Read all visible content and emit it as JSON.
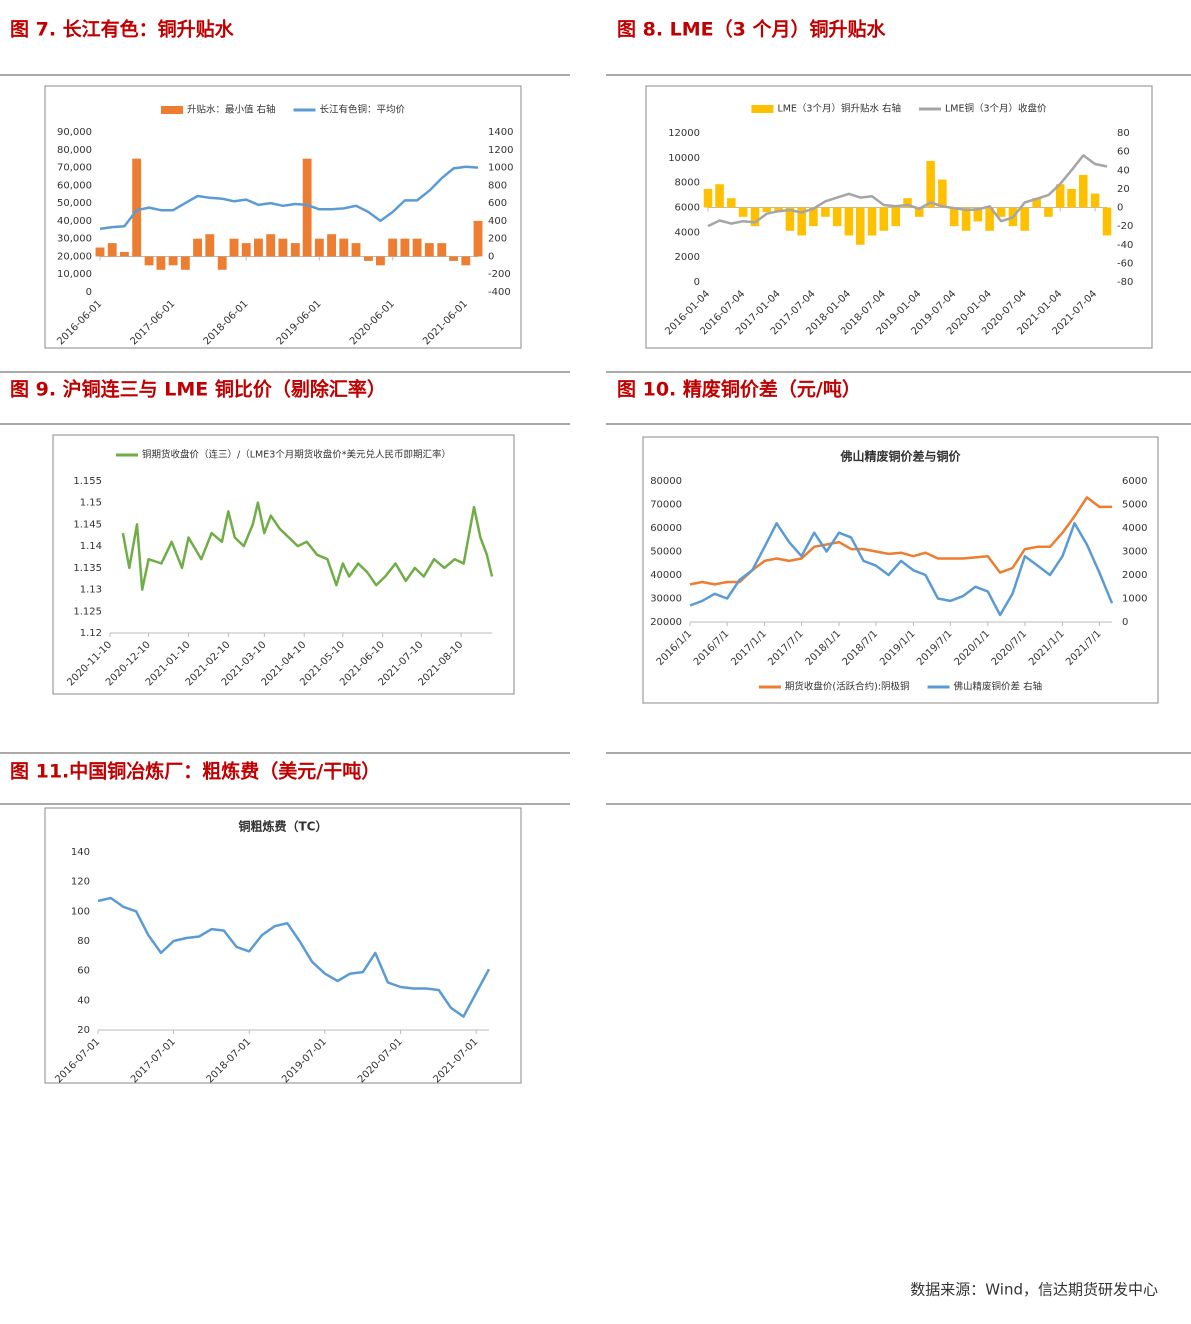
{
  "chart_data": [
    {
      "type": "combo",
      "heading": "图 7. 长江有色：铜升贴水",
      "x": [
        "2016-06-01",
        "2016-08-01",
        "2016-10-01",
        "2016-12-01",
        "2017-02-01",
        "2017-04-01",
        "2017-06-01",
        "2017-08-01",
        "2017-10-01",
        "2017-12-01",
        "2018-02-01",
        "2018-04-01",
        "2018-06-01",
        "2018-08-01",
        "2018-10-01",
        "2018-12-01",
        "2019-02-01",
        "2019-04-01",
        "2019-06-01",
        "2019-08-01",
        "2019-10-01",
        "2019-12-01",
        "2020-02-01",
        "2020-04-01",
        "2020-06-01",
        "2020-08-01",
        "2020-10-01",
        "2020-12-01",
        "2021-02-01",
        "2021-04-01",
        "2021-06-01",
        "2021-08-01"
      ],
      "xticks": [
        "2016-06-01",
        "2017-06-01",
        "2018-06-01",
        "2019-06-01",
        "2020-06-01",
        "2021-06-01"
      ],
      "series": [
        {
          "name": "升贴水：最小值 右轴",
          "type": "bar",
          "axis": "y2",
          "color": "#ed7d31",
          "values": [
            100,
            150,
            50,
            1100,
            -100,
            -150,
            -100,
            -150,
            200,
            250,
            -150,
            200,
            150,
            200,
            250,
            200,
            150,
            1100,
            200,
            250,
            200,
            150,
            -50,
            -100,
            200,
            200,
            200,
            150,
            150,
            -50,
            -100,
            400
          ]
        },
        {
          "name": "长江有色铜：平均价",
          "type": "line",
          "color": "#5b9bd5",
          "values": [
            35500,
            36500,
            37000,
            46000,
            47500,
            46000,
            46000,
            50000,
            54000,
            53000,
            52500,
            51000,
            52000,
            49000,
            50000,
            48500,
            49500,
            49000,
            46500,
            46500,
            47000,
            48500,
            45000,
            40000,
            45000,
            51500,
            51500,
            57000,
            64000,
            69500,
            70500,
            70000
          ]
        }
      ],
      "ylim": [
        0,
        90000
      ],
      "yticks": [
        0,
        {
          "value": 10000,
          "label": "10,000"
        },
        {
          "value": 20000,
          "label": "20,000"
        },
        {
          "value": 30000,
          "label": "30,000"
        },
        {
          "value": 40000,
          "label": "40,000"
        },
        {
          "value": 50000,
          "label": "50,000"
        },
        {
          "value": 60000,
          "label": "60,000"
        },
        {
          "value": 70000,
          "label": "70,000"
        },
        {
          "value": 80000,
          "label": "80,000"
        },
        {
          "value": 90000,
          "label": "90,000"
        }
      ],
      "y2lim": [
        -400,
        1400
      ],
      "y2ticks": [
        -400,
        -200,
        0,
        200,
        400,
        600,
        800,
        1000,
        1200,
        1400
      ],
      "legend": "top"
    },
    {
      "type": "combo",
      "heading": "图 8. LME（3 个月）铜升贴水",
      "x": [
        "2016-01-04",
        "2016-03-04",
        "2016-05-04",
        "2016-07-04",
        "2016-09-04",
        "2016-11-04",
        "2017-01-04",
        "2017-03-04",
        "2017-05-04",
        "2017-07-04",
        "2017-09-04",
        "2017-11-04",
        "2018-01-04",
        "2018-03-04",
        "2018-05-04",
        "2018-07-04",
        "2018-09-04",
        "2018-11-04",
        "2019-01-04",
        "2019-03-04",
        "2019-05-04",
        "2019-07-04",
        "2019-09-04",
        "2019-11-04",
        "2020-01-04",
        "2020-03-04",
        "2020-05-04",
        "2020-07-04",
        "2020-09-04",
        "2020-11-04",
        "2021-01-04",
        "2021-03-04",
        "2021-05-04",
        "2021-07-04",
        "2021-09-04"
      ],
      "xticks": [
        "2016-01-04",
        "2016-07-04",
        "2017-01-04",
        "2017-07-04",
        "2018-01-04",
        "2018-07-04",
        "2019-01-04",
        "2019-07-04",
        "2020-01-04",
        "2020-07-04",
        "2021-01-04",
        "2021-07-04"
      ],
      "series": [
        {
          "name": "LME（3个月）铜升贴水 右轴",
          "type": "bar",
          "axis": "y2",
          "color": "#ffc000",
          "values": [
            20,
            25,
            10,
            -10,
            -20,
            -5,
            -5,
            -25,
            -30,
            -20,
            -10,
            -20,
            -30,
            -40,
            -30,
            -25,
            -20,
            10,
            -10,
            50,
            30,
            -20,
            -25,
            -15,
            -25,
            -10,
            -20,
            -25,
            10,
            -10,
            25,
            20,
            35,
            15,
            -30
          ]
        },
        {
          "name": "LME铜（3个月）收盘价",
          "type": "line",
          "color": "#a5a5a5",
          "values": [
            4500,
            4950,
            4700,
            4900,
            4800,
            5500,
            5700,
            5800,
            5600,
            5900,
            6500,
            6800,
            7100,
            6800,
            6900,
            6200,
            6100,
            6200,
            5900,
            6400,
            6100,
            5950,
            5800,
            5850,
            6100,
            4900,
            5200,
            6400,
            6700,
            7000,
            7900,
            9000,
            10200,
            9500,
            9300
          ]
        }
      ],
      "ylim": [
        0,
        12000
      ],
      "yticks": [
        0,
        2000,
        4000,
        6000,
        8000,
        10000,
        12000
      ],
      "y2lim": [
        -80,
        80
      ],
      "y2ticks": [
        -80,
        -60,
        -40,
        -20,
        0,
        20,
        40,
        60,
        80
      ],
      "legend": "top"
    },
    {
      "type": "line",
      "heading": "图 9. 沪铜连三与 LME 铜比价（剔除汇率）",
      "x": [
        "2020-11-20",
        "2020-11-25",
        "2020-12-01",
        "2020-12-05",
        "2020-12-10",
        "2020-12-20",
        "2020-12-28",
        "2021-01-05",
        "2021-01-10",
        "2021-01-20",
        "2021-01-28",
        "2021-02-05",
        "2021-02-10",
        "2021-02-15",
        "2021-02-22",
        "2021-03-01",
        "2021-03-05",
        "2021-03-10",
        "2021-03-15",
        "2021-03-22",
        "2021-03-29",
        "2021-04-05",
        "2021-04-12",
        "2021-04-20",
        "2021-04-28",
        "2021-05-05",
        "2021-05-10",
        "2021-05-15",
        "2021-05-22",
        "2021-05-29",
        "2021-06-05",
        "2021-06-12",
        "2021-06-20",
        "2021-06-28",
        "2021-07-05",
        "2021-07-12",
        "2021-07-20",
        "2021-07-28",
        "2021-08-05",
        "2021-08-12",
        "2021-08-20",
        "2021-08-25",
        "2021-08-30",
        "2021-09-03"
      ],
      "xticks": [
        "2020-11-10",
        "2020-12-10",
        "2021-01-10",
        "2021-02-10",
        "2021-03-10",
        "2021-04-10",
        "2021-05-10",
        "2021-06-10",
        "2021-07-10",
        "2021-08-10"
      ],
      "series": [
        {
          "name": "铜期货收盘价（连三）/（LME3个月期货收盘价*美元兑人民币即期汇率）",
          "type": "line",
          "color": "#70ad47",
          "values": [
            1.143,
            1.135,
            1.145,
            1.13,
            1.137,
            1.136,
            1.141,
            1.135,
            1.142,
            1.137,
            1.143,
            1.141,
            1.148,
            1.142,
            1.14,
            1.145,
            1.15,
            1.143,
            1.147,
            1.144,
            1.142,
            1.14,
            1.141,
            1.138,
            1.137,
            1.131,
            1.136,
            1.133,
            1.136,
            1.134,
            1.131,
            1.133,
            1.136,
            1.132,
            1.135,
            1.133,
            1.137,
            1.135,
            1.137,
            1.136,
            1.149,
            1.142,
            1.138,
            1.133
          ]
        }
      ],
      "ylim": [
        1.12,
        1.155
      ],
      "yticks": [
        1.12,
        1.125,
        1.13,
        1.135,
        1.14,
        1.145,
        1.15,
        1.155
      ],
      "legend": "top"
    },
    {
      "type": "line",
      "heading": "图 10. 精废铜价差（元/吨）",
      "title": "佛山精废铜价差与铜价",
      "x": [
        "2016/1/1",
        "2016/3/1",
        "2016/5/1",
        "2016/7/1",
        "2016/9/1",
        "2016/11/1",
        "2017/1/1",
        "2017/3/1",
        "2017/5/1",
        "2017/7/1",
        "2017/9/1",
        "2017/11/1",
        "2018/1/1",
        "2018/3/1",
        "2018/5/1",
        "2018/7/1",
        "2018/9/1",
        "2018/11/1",
        "2019/1/1",
        "2019/3/1",
        "2019/5/1",
        "2019/7/1",
        "2019/9/1",
        "2019/11/1",
        "2020/1/1",
        "2020/3/1",
        "2020/5/1",
        "2020/7/1",
        "2020/9/1",
        "2020/11/1",
        "2021/1/1",
        "2021/3/1",
        "2021/5/1",
        "2021/7/1",
        "2021/9/1"
      ],
      "xticks": [
        "2016/1/1",
        "2016/7/1",
        "2017/1/1",
        "2017/7/1",
        "2018/1/1",
        "2018/7/1",
        "2019/1/1",
        "2019/7/1",
        "2020/1/1",
        "2020/7/1",
        "2021/1/1",
        "2021/7/1"
      ],
      "series": [
        {
          "name": "期货收盘价(活跃合约):阴极铜",
          "type": "line",
          "color": "#ed7d31",
          "values": [
            36000,
            37000,
            36000,
            37000,
            37000,
            42000,
            46000,
            47000,
            46000,
            47000,
            52000,
            53000,
            54000,
            51000,
            51000,
            50000,
            49000,
            49500,
            48000,
            49500,
            47000,
            47000,
            47000,
            47500,
            48000,
            41000,
            43000,
            51000,
            52000,
            52000,
            58000,
            65000,
            73000,
            69000,
            69000
          ]
        },
        {
          "name": "佛山精废铜价差 右轴",
          "type": "line",
          "axis": "y2",
          "color": "#5b9bd5",
          "values": [
            700,
            900,
            1200,
            1000,
            1800,
            2200,
            3200,
            4200,
            3400,
            2800,
            3800,
            3000,
            3800,
            3600,
            2600,
            2400,
            2000,
            2600,
            2200,
            2000,
            1000,
            900,
            1100,
            1500,
            1300,
            300,
            1200,
            2800,
            2400,
            2000,
            2800,
            4200,
            3300,
            2100,
            800
          ]
        }
      ],
      "ylim": [
        20000,
        80000
      ],
      "yticks": [
        20000,
        30000,
        40000,
        50000,
        60000,
        70000,
        80000
      ],
      "y2lim": [
        0,
        6000
      ],
      "y2ticks": [
        0,
        1000,
        2000,
        3000,
        4000,
        5000,
        6000
      ],
      "legend": "bottom"
    },
    {
      "type": "line",
      "heading": "图 11.中国铜冶炼厂：粗炼费（美元/干吨）",
      "title": "铜粗炼费（TC）",
      "x": [
        "2016-07-01",
        "2016-09-01",
        "2016-11-01",
        "2017-01-01",
        "2017-03-01",
        "2017-05-01",
        "2017-07-01",
        "2017-09-01",
        "2017-11-01",
        "2018-01-01",
        "2018-03-01",
        "2018-05-01",
        "2018-07-01",
        "2018-09-01",
        "2018-11-01",
        "2019-01-01",
        "2019-03-01",
        "2019-05-01",
        "2019-07-01",
        "2019-09-01",
        "2019-11-01",
        "2020-01-01",
        "2020-03-01",
        "2020-05-01",
        "2020-07-01",
        "2020-09-01",
        "2020-11-01",
        "2021-01-01",
        "2021-03-01",
        "2021-05-01",
        "2021-07-01",
        "2021-09-01"
      ],
      "xticks": [
        "2016-07-01",
        "2017-07-01",
        "2018-07-01",
        "2019-07-01",
        "2020-07-01",
        "2021-07-01"
      ],
      "series": [
        {
          "type": "line",
          "color": "#5b9bd5",
          "values": [
            107,
            109,
            103,
            100,
            84,
            72,
            80,
            82,
            83,
            88,
            87,
            76,
            73,
            84,
            90,
            92,
            80,
            66,
            58,
            53,
            58,
            59,
            72,
            52,
            49,
            48,
            48,
            47,
            35,
            29,
            45,
            61
          ]
        }
      ],
      "ylim": [
        20,
        140
      ],
      "yticks": [
        20,
        40,
        60,
        80,
        100,
        120,
        140
      ]
    }
  ],
  "footer": "数据来源：Wind，信达期货研发中心"
}
